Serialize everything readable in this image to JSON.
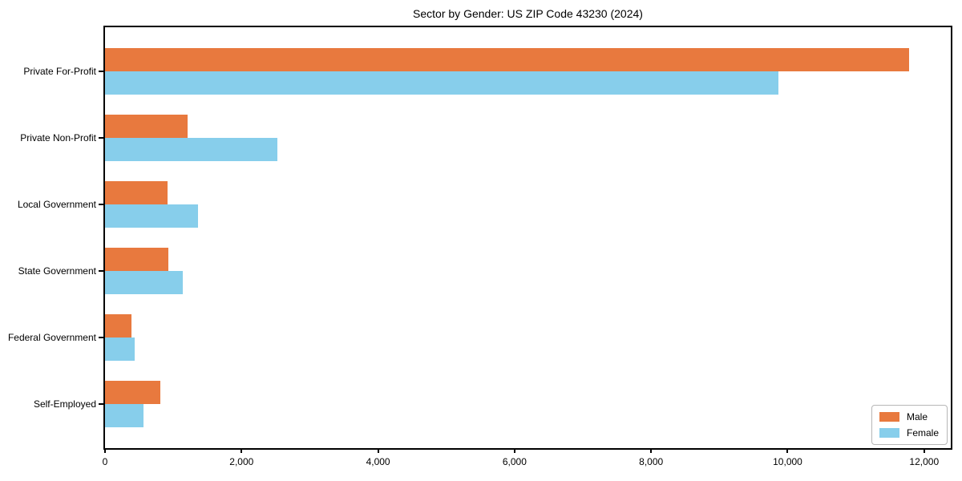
{
  "title": "Sector by Gender: US ZIP Code 43230 (2024)",
  "legend": {
    "position": "lower right",
    "items": [
      {
        "label": "Male",
        "color": "#e8793e"
      },
      {
        "label": "Female",
        "color": "#87ceeb"
      }
    ]
  },
  "chart_data": {
    "type": "bar",
    "orientation": "horizontal",
    "title": "Sector by Gender: US ZIP Code 43230 (2024)",
    "categories": [
      "Private For-Profit",
      "Private Non-Profit",
      "Local Government",
      "State Government",
      "Federal Government",
      "Self-Employed"
    ],
    "series": [
      {
        "name": "Male",
        "color": "#e8793e",
        "values": [
          11780,
          1210,
          915,
          930,
          390,
          810
        ]
      },
      {
        "name": "Female",
        "color": "#87ceeb",
        "values": [
          9860,
          2520,
          1360,
          1140,
          435,
          565
        ]
      }
    ],
    "xlabel": "",
    "ylabel": "",
    "xlim": [
      0,
      12390
    ],
    "xticks": [
      0,
      2000,
      4000,
      6000,
      8000,
      10000,
      12000
    ],
    "xtick_labels": [
      "0",
      "2,000",
      "4,000",
      "6,000",
      "8,000",
      "10,000",
      "12,000"
    ],
    "grid": false,
    "legend_position": "lower right"
  }
}
